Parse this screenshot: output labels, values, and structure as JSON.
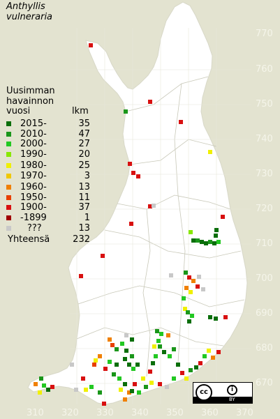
{
  "title": {
    "line1": "Anthyllis",
    "line2": "vulneraria"
  },
  "legend": {
    "header": [
      "Uusimman",
      "havainnon",
      "vuosi"
    ],
    "count_header": "lkm",
    "items": [
      {
        "label": "2015-",
        "count": "35",
        "color": "#0a6e0a"
      },
      {
        "label": "2010-",
        "count": "47",
        "color": "#1a961a"
      },
      {
        "label": "2000-",
        "count": "27",
        "color": "#22c822"
      },
      {
        "label": "1990-",
        "count": "20",
        "color": "#88e800"
      },
      {
        "label": "1980-",
        "count": "25",
        "color": "#f0f000"
      },
      {
        "label": "1970-",
        "count": "3",
        "color": "#f0c800"
      },
      {
        "label": "1960-",
        "count": "13",
        "color": "#f08000"
      },
      {
        "label": "1950-",
        "count": "11",
        "color": "#e84000"
      },
      {
        "label": "1900-",
        "count": "37",
        "color": "#d81010"
      },
      {
        "label": "-1899",
        "count": "1",
        "color": "#a00000"
      },
      {
        "label": "???",
        "count": "13",
        "color": "#c8c8c8"
      }
    ],
    "total_label": "Yhteensä",
    "total_count": "232"
  },
  "grid": {
    "y_ticks": [
      "770",
      "760",
      "750",
      "740",
      "730",
      "720",
      "710",
      "700",
      "690",
      "680",
      "670"
    ],
    "x_ticks": [
      "310",
      "320",
      "330",
      "340",
      "350",
      "360",
      "370"
    ]
  },
  "license": {
    "cc": "cc",
    "by": "i",
    "by_text": "BY"
  },
  "colors": {
    "background": "#e3e3d0",
    "land": "#ffffff",
    "boundary": "#c8c8b8",
    "grid_text": "#f5f5ea"
  }
}
